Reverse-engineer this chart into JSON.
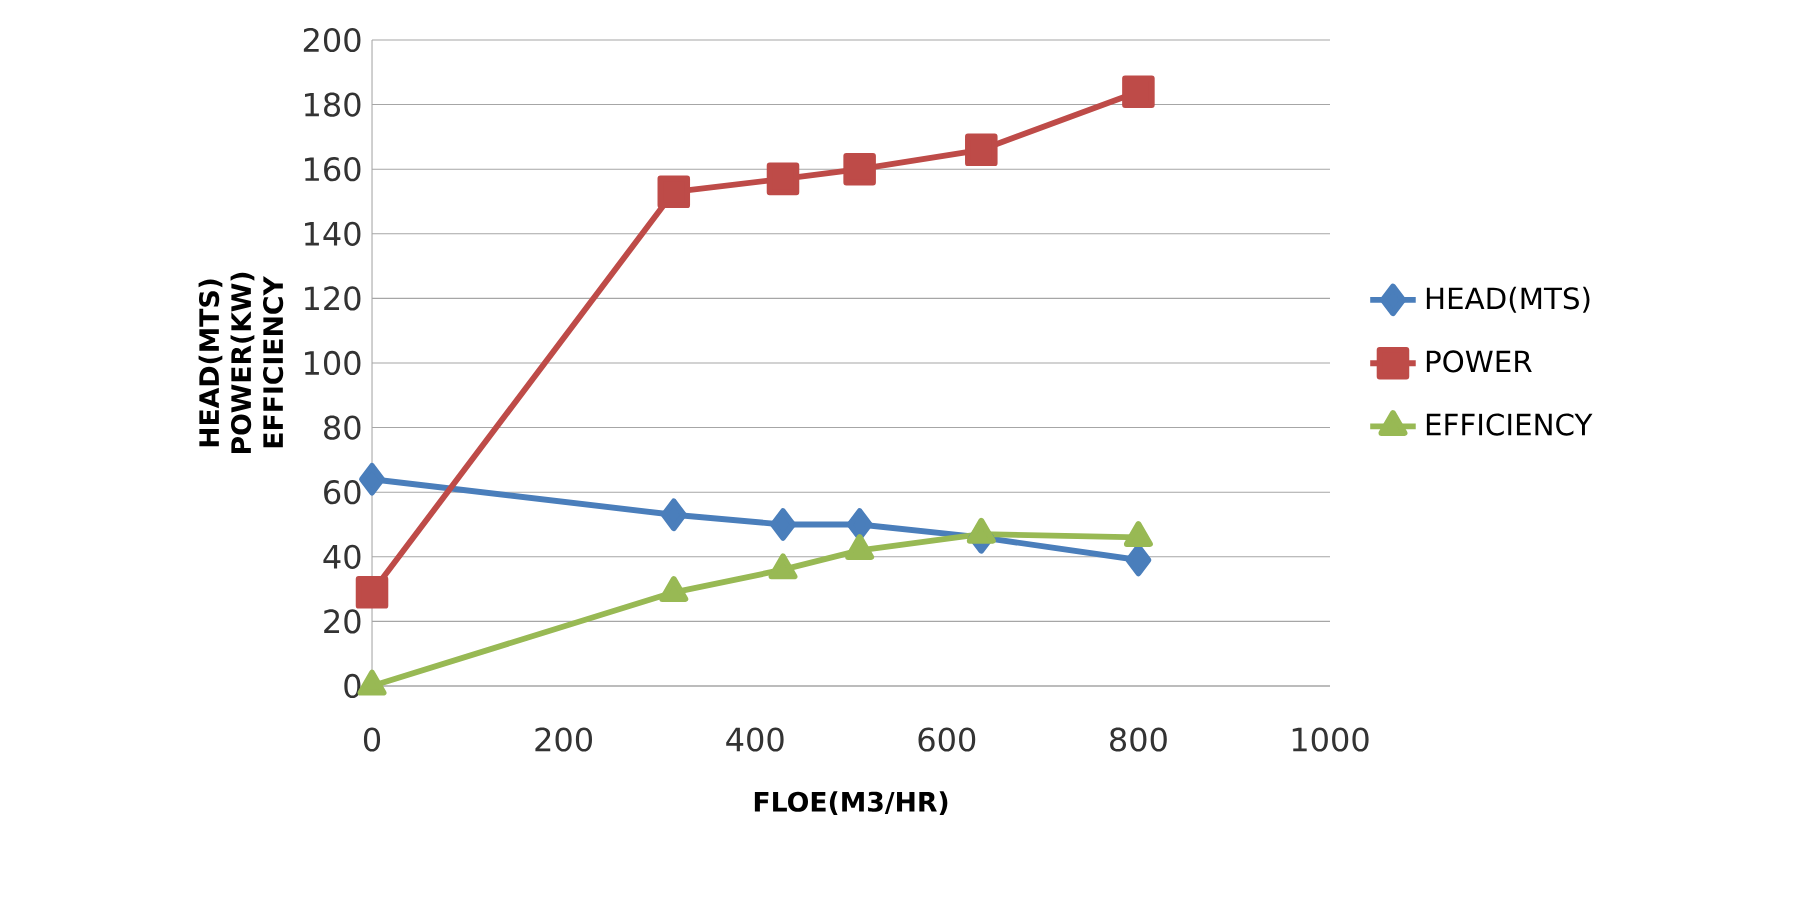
{
  "chart_data": {
    "type": "line",
    "xlabel": "FLOE(M3/HR)",
    "ylabel": "HEAD(MTS) POWER(KW) EFFICIENCY",
    "x": [
      0,
      315,
      429,
      509,
      636,
      800
    ],
    "series": [
      {
        "name": "HEAD(MTS)",
        "color": "#4a7ebb",
        "marker": "diamond",
        "values": [
          64,
          53,
          50,
          50,
          46,
          39
        ]
      },
      {
        "name": "POWER",
        "color": "#be4b48",
        "marker": "square",
        "values": [
          29,
          153,
          157,
          160,
          166,
          184
        ]
      },
      {
        "name": "EFFICIENCY",
        "color": "#98b954",
        "marker": "triangle",
        "values": [
          0,
          29,
          36,
          42,
          47,
          46
        ]
      }
    ],
    "xlim": [
      0,
      1000
    ],
    "xticks": [
      0,
      200,
      400,
      600,
      800,
      1000
    ],
    "ylim": [
      0,
      200
    ],
    "yticks": [
      0,
      20,
      40,
      60,
      80,
      100,
      120,
      140,
      160,
      180,
      200
    ],
    "grid": "y",
    "legend": "right",
    "line_style": "solid"
  }
}
